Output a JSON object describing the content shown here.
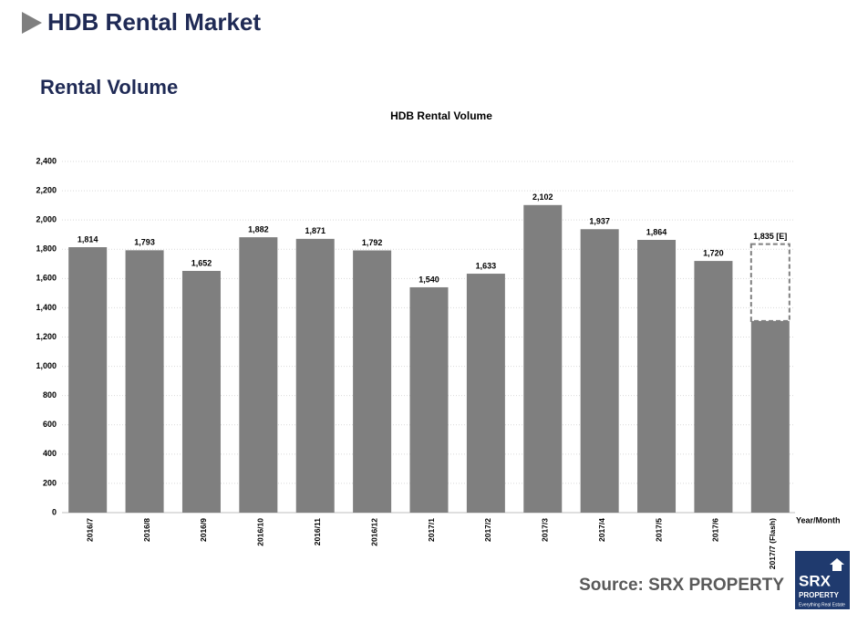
{
  "page": {
    "heading": "HDB Rental Market",
    "subheading": "Rental Volume",
    "source": "Source:  SRX PROPERTY",
    "logo": {
      "brand": "SRX",
      "name": "PROPERTY",
      "tagline": "Everything Real Estate"
    }
  },
  "chart_data": {
    "type": "bar",
    "title": "HDB Rental Volume",
    "x_label": "Year/Month",
    "categories": [
      "2016/7",
      "2016/8",
      "2016/9",
      "2016/10",
      "2016/11",
      "2016/12",
      "2017/1",
      "2017/2",
      "2017/3",
      "2017/4",
      "2017/5",
      "2017/6",
      "2017/7 (Flash)"
    ],
    "values": [
      1814,
      1793,
      1652,
      1882,
      1871,
      1792,
      1540,
      1633,
      2102,
      1937,
      1864,
      1720,
      1310
    ],
    "value_labels": [
      "1,814",
      "1,793",
      "1,652",
      "1,882",
      "1,871",
      "1,792",
      "1,540",
      "1,633",
      "2,102",
      "1,937",
      "1,864",
      "1,720",
      null
    ],
    "estimate": {
      "value": 1835,
      "label": "1,835 [E]"
    },
    "color": "#7f7f7f",
    "ylim": [
      0,
      2400
    ],
    "yticks": [
      0,
      200,
      400,
      600,
      800,
      {
        "value": 1000,
        "label": "1,000"
      },
      {
        "value": 1200,
        "label": "1,200"
      },
      {
        "value": 1400,
        "label": "1,400"
      },
      {
        "value": 1600,
        "label": "1,600"
      },
      {
        "value": 1800,
        "label": "1,800"
      },
      {
        "value": 2000,
        "label": "2,000"
      },
      {
        "value": 2200,
        "label": "2,200"
      },
      {
        "value": 2400,
        "label": "2,400"
      }
    ],
    "grid": true
  }
}
